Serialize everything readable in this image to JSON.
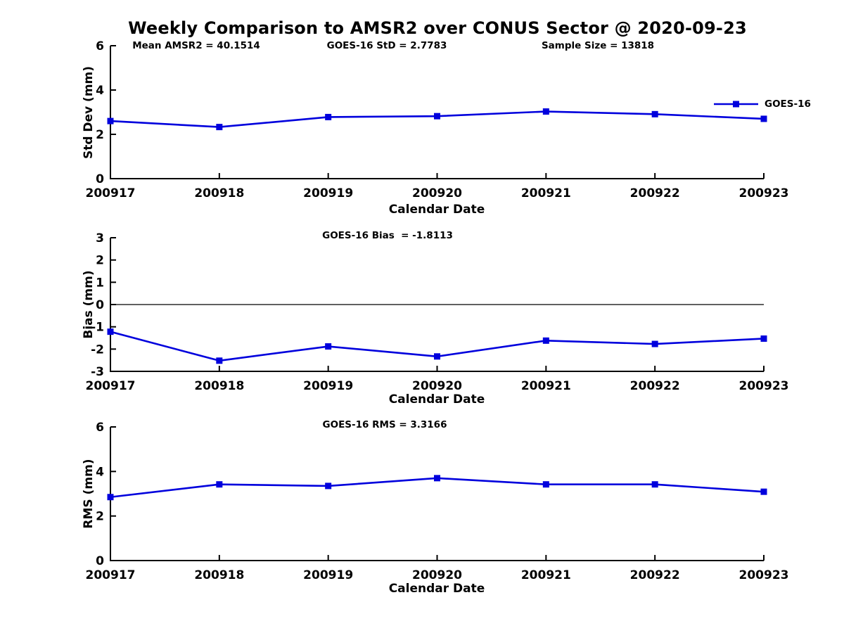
{
  "page": {
    "background": "#ffffff",
    "text_color": "#000000"
  },
  "title": "Weekly Comparison to AMSR2 over CONUS Sector @ 2020-09-23",
  "legend": {
    "label": "GOES-16",
    "color": "#0000dd"
  },
  "chart_data": [
    {
      "type": "line",
      "name": "std-dev",
      "ylabel": "Std Dev (mm)",
      "xlabel": "Calendar Date",
      "categories": [
        "200917",
        "200918",
        "200919",
        "200920",
        "200921",
        "200922",
        "200923"
      ],
      "series": [
        {
          "name": "GOES-16",
          "color": "#0000dd",
          "marker": "square",
          "values": [
            2.6,
            2.33,
            2.78,
            2.82,
            3.03,
            2.91,
            2.7
          ]
        }
      ],
      "ylim": [
        0,
        6
      ],
      "yticks": [
        0,
        2,
        4,
        6
      ],
      "zero_line": false,
      "grid": false,
      "legend_position": "top-right",
      "annotations": [
        "Mean AMSR2 = 40.1514",
        "GOES-16 StD = 2.7783",
        "Sample Size = 13818"
      ]
    },
    {
      "type": "line",
      "name": "bias",
      "ylabel": "Bias (mm)",
      "xlabel": "Calendar Date",
      "categories": [
        "200917",
        "200918",
        "200919",
        "200920",
        "200921",
        "200922",
        "200923"
      ],
      "series": [
        {
          "name": "GOES-16",
          "color": "#0000dd",
          "marker": "square",
          "values": [
            -1.22,
            -2.52,
            -1.88,
            -2.33,
            -1.62,
            -1.77,
            -1.53
          ]
        }
      ],
      "ylim": [
        -3,
        3
      ],
      "yticks": [
        -3,
        -2,
        -1,
        0,
        1,
        2,
        3
      ],
      "zero_line": true,
      "grid": false,
      "annotations": [
        "GOES-16 Bias  = -1.8113"
      ]
    },
    {
      "type": "line",
      "name": "rms",
      "ylabel": "RMS (mm)",
      "xlabel": "Calendar Date",
      "categories": [
        "200917",
        "200918",
        "200919",
        "200920",
        "200921",
        "200922",
        "200923"
      ],
      "series": [
        {
          "name": "GOES-16",
          "color": "#0000dd",
          "marker": "square",
          "values": [
            2.85,
            3.42,
            3.35,
            3.7,
            3.42,
            3.42,
            3.09
          ]
        }
      ],
      "ylim": [
        0,
        6
      ],
      "yticks": [
        0,
        2,
        4,
        6
      ],
      "zero_line": false,
      "grid": false,
      "annotations": [
        "GOES-16 RMS = 3.3166"
      ]
    }
  ]
}
